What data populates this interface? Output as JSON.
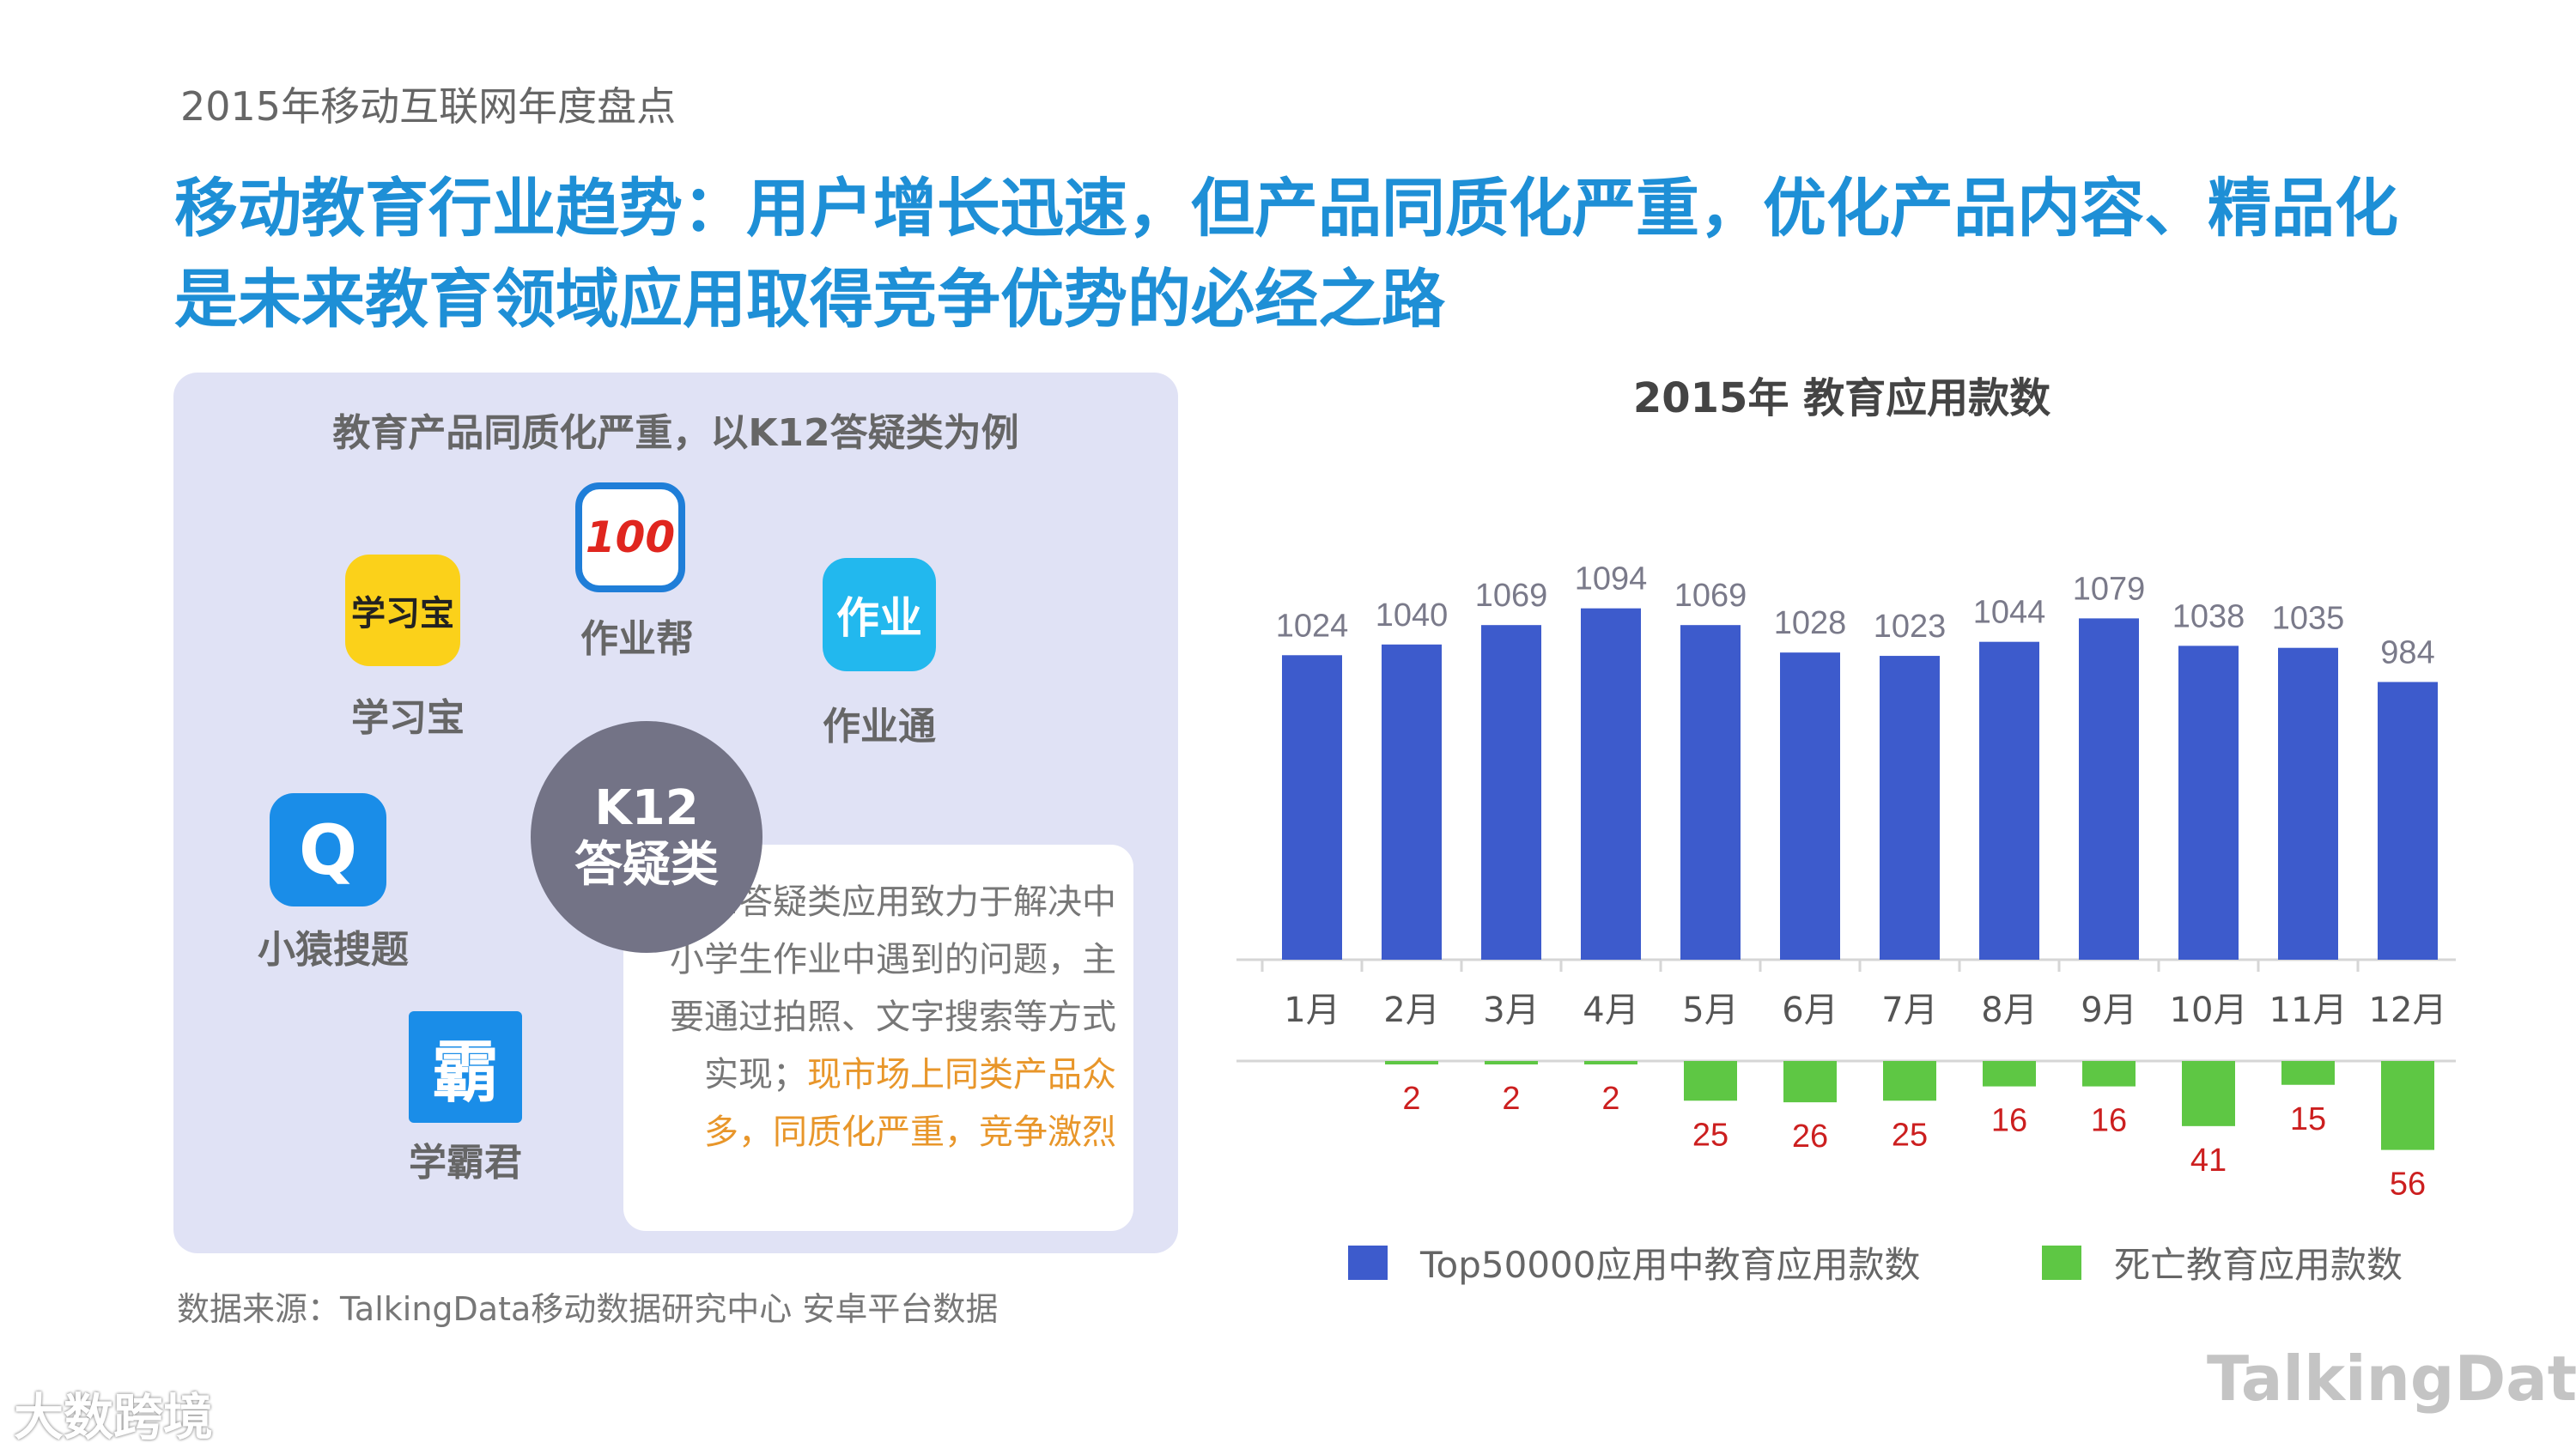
{
  "header_sub": "2015年移动互联网年度盘点",
  "title_line1": "移动教育行业趋势：用户增长迅速，但产品同质化严重，优化产品内容、精品化",
  "title_line2": "是未来教育领域应用取得竞争优势的必经之路",
  "panel": {
    "title": "教育产品同质化严重，以K12答疑类为例",
    "apps": [
      {
        "label": "学习宝",
        "icon_text": "学习宝"
      },
      {
        "label": "作业帮",
        "icon_text": "100"
      },
      {
        "label": "作业通",
        "icon_text": "作业"
      },
      {
        "label": "小猿搜题",
        "icon_text": "Q"
      },
      {
        "label": "学霸君",
        "icon_text": "霸"
      }
    ],
    "center_line1": "K12",
    "center_line2": "答疑类",
    "desc_plain": "K12答疑类应用致力于解决中小学生作业中遇到的问题，主要通过拍照、文字搜索等方式实现；",
    "desc_highlight": "现市场上同类产品众多，同质化严重，竞争激烈"
  },
  "source": "数据来源：TalkingData移动数据研究中心 安卓平台数据",
  "watermark_left": "大数跨境",
  "watermark_right": "TalkingData",
  "chart_data": {
    "type": "bar",
    "title": "2015年  教育应用款数",
    "categories": [
      "1月",
      "2月",
      "3月",
      "4月",
      "5月",
      "6月",
      "7月",
      "8月",
      "9月",
      "10月",
      "11月",
      "12月"
    ],
    "series": [
      {
        "name": "Top50000应用中教育应用款数",
        "color": "#3d5bcc",
        "values": [
          1024,
          1040,
          1069,
          1094,
          1069,
          1028,
          1023,
          1044,
          1079,
          1038,
          1035,
          984
        ]
      },
      {
        "name": "死亡教育应用款数",
        "color": "#5ec744",
        "values": [
          0,
          2,
          2,
          2,
          25,
          26,
          25,
          16,
          16,
          41,
          15,
          56
        ]
      }
    ],
    "label_colors": {
      "top": "#7a7a8a",
      "bottom": "#cc1f1f"
    }
  }
}
